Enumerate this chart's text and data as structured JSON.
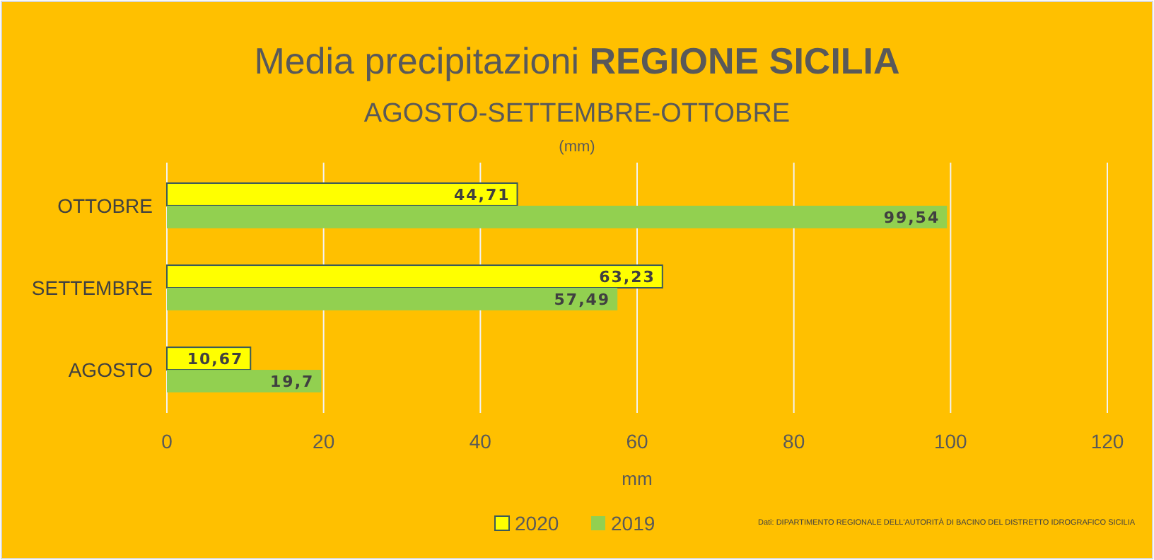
{
  "chart_data": {
    "type": "bar",
    "orientation": "horizontal",
    "title": "Media precipitazioni REGIONE SICILIA",
    "subtitle": "AGOSTO-SETTEMBRE-OTTOBRE",
    "xlabel": "mm",
    "annotations": [
      "(mm)",
      "Dati: DIPARTIMENTO REGIONALE DELL'AUTORITÀ DI BACINO DEL DISTRETTO IDROGRAFICO SICILIA"
    ],
    "categories": [
      "OTTOBRE",
      "SETTEMBRE",
      "AGOSTO"
    ],
    "series": [
      {
        "name": "2020",
        "color": "#ffff00",
        "values": [
          44.71,
          63.23,
          10.67
        ],
        "value_labels": [
          "44,71",
          "63,23",
          "10,67"
        ]
      },
      {
        "name": "2019",
        "color": "#92d050",
        "values": [
          99.54,
          57.49,
          19.7
        ],
        "value_labels": [
          "99,54",
          "57,49",
          "19,7"
        ]
      }
    ],
    "xlim": [
      0,
      120
    ],
    "xticks": [
      0,
      20,
      40,
      60,
      80,
      100,
      120
    ],
    "grid": "x",
    "legend": "bottom"
  }
}
